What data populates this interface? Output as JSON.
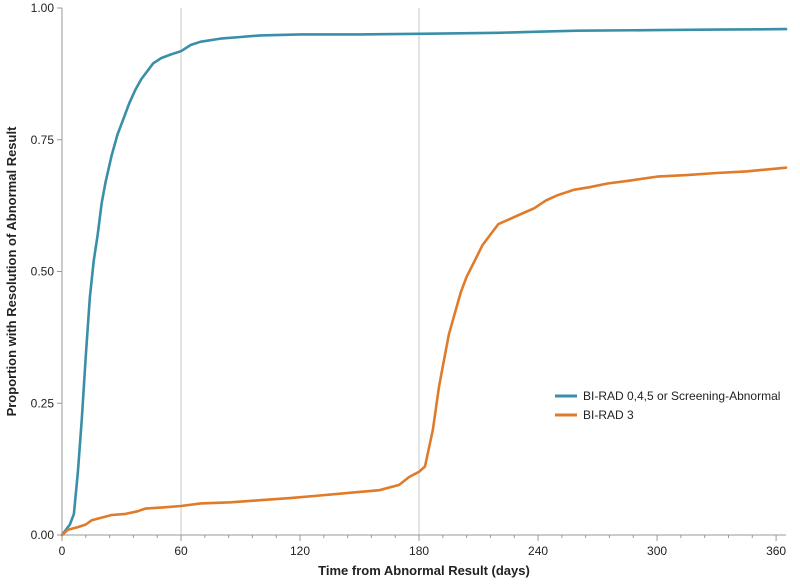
{
  "chart_data": {
    "type": "line",
    "title": "",
    "xlabel": "Time from Abnormal Result (days)",
    "ylabel": "Proportion with Resolution of Abnormal Result",
    "xlim": [
      0,
      365
    ],
    "ylim": [
      0,
      1
    ],
    "x_ticks": [
      0,
      60,
      120,
      180,
      240,
      300,
      360
    ],
    "y_ticks": [
      0.0,
      0.25,
      0.5,
      0.75,
      1.0
    ],
    "x_tick_labels": [
      "0",
      "60",
      "120",
      "180",
      "240",
      "300",
      "360"
    ],
    "y_tick_labels": [
      "0.00",
      "0.25",
      "0.50",
      "0.75",
      "1.00"
    ],
    "reference_lines_x": [
      60,
      180
    ],
    "grid": false,
    "legend_position": "right",
    "series": [
      {
        "name": "BI-RAD 0,4,5 or Screening-Abnormal",
        "color": "#3a8fa8",
        "points": [
          [
            0,
            0
          ],
          [
            2,
            0.01
          ],
          [
            4,
            0.02
          ],
          [
            6,
            0.04
          ],
          [
            8,
            0.12
          ],
          [
            10,
            0.22
          ],
          [
            12,
            0.34
          ],
          [
            14,
            0.45
          ],
          [
            16,
            0.52
          ],
          [
            18,
            0.57
          ],
          [
            20,
            0.63
          ],
          [
            22,
            0.67
          ],
          [
            25,
            0.72
          ],
          [
            28,
            0.76
          ],
          [
            31,
            0.79
          ],
          [
            34,
            0.82
          ],
          [
            37,
            0.845
          ],
          [
            40,
            0.865
          ],
          [
            43,
            0.88
          ],
          [
            46,
            0.895
          ],
          [
            50,
            0.905
          ],
          [
            55,
            0.912
          ],
          [
            60,
            0.918
          ],
          [
            65,
            0.93
          ],
          [
            70,
            0.936
          ],
          [
            80,
            0.942
          ],
          [
            90,
            0.945
          ],
          [
            100,
            0.948
          ],
          [
            120,
            0.95
          ],
          [
            150,
            0.95
          ],
          [
            180,
            0.951
          ],
          [
            200,
            0.952
          ],
          [
            220,
            0.953
          ],
          [
            240,
            0.955
          ],
          [
            260,
            0.957
          ],
          [
            300,
            0.958
          ],
          [
            330,
            0.959
          ],
          [
            365,
            0.96
          ]
        ]
      },
      {
        "name": "BI-RAD 3",
        "color": "#e07b2a",
        "points": [
          [
            0,
            0
          ],
          [
            3,
            0.01
          ],
          [
            8,
            0.015
          ],
          [
            12,
            0.02
          ],
          [
            15,
            0.028
          ],
          [
            20,
            0.033
          ],
          [
            25,
            0.038
          ],
          [
            32,
            0.04
          ],
          [
            38,
            0.045
          ],
          [
            42,
            0.05
          ],
          [
            50,
            0.052
          ],
          [
            60,
            0.055
          ],
          [
            70,
            0.06
          ],
          [
            85,
            0.062
          ],
          [
            100,
            0.066
          ],
          [
            115,
            0.07
          ],
          [
            130,
            0.075
          ],
          [
            145,
            0.08
          ],
          [
            160,
            0.085
          ],
          [
            170,
            0.095
          ],
          [
            175,
            0.11
          ],
          [
            180,
            0.12
          ],
          [
            183,
            0.13
          ],
          [
            187,
            0.2
          ],
          [
            190,
            0.28
          ],
          [
            192,
            0.32
          ],
          [
            195,
            0.38
          ],
          [
            198,
            0.42
          ],
          [
            201,
            0.46
          ],
          [
            204,
            0.49
          ],
          [
            208,
            0.52
          ],
          [
            212,
            0.55
          ],
          [
            216,
            0.57
          ],
          [
            220,
            0.59
          ],
          [
            226,
            0.6
          ],
          [
            232,
            0.61
          ],
          [
            238,
            0.62
          ],
          [
            244,
            0.635
          ],
          [
            250,
            0.645
          ],
          [
            258,
            0.655
          ],
          [
            266,
            0.66
          ],
          [
            275,
            0.667
          ],
          [
            285,
            0.672
          ],
          [
            300,
            0.68
          ],
          [
            315,
            0.683
          ],
          [
            330,
            0.687
          ],
          [
            345,
            0.69
          ],
          [
            365,
            0.697
          ]
        ]
      }
    ]
  }
}
